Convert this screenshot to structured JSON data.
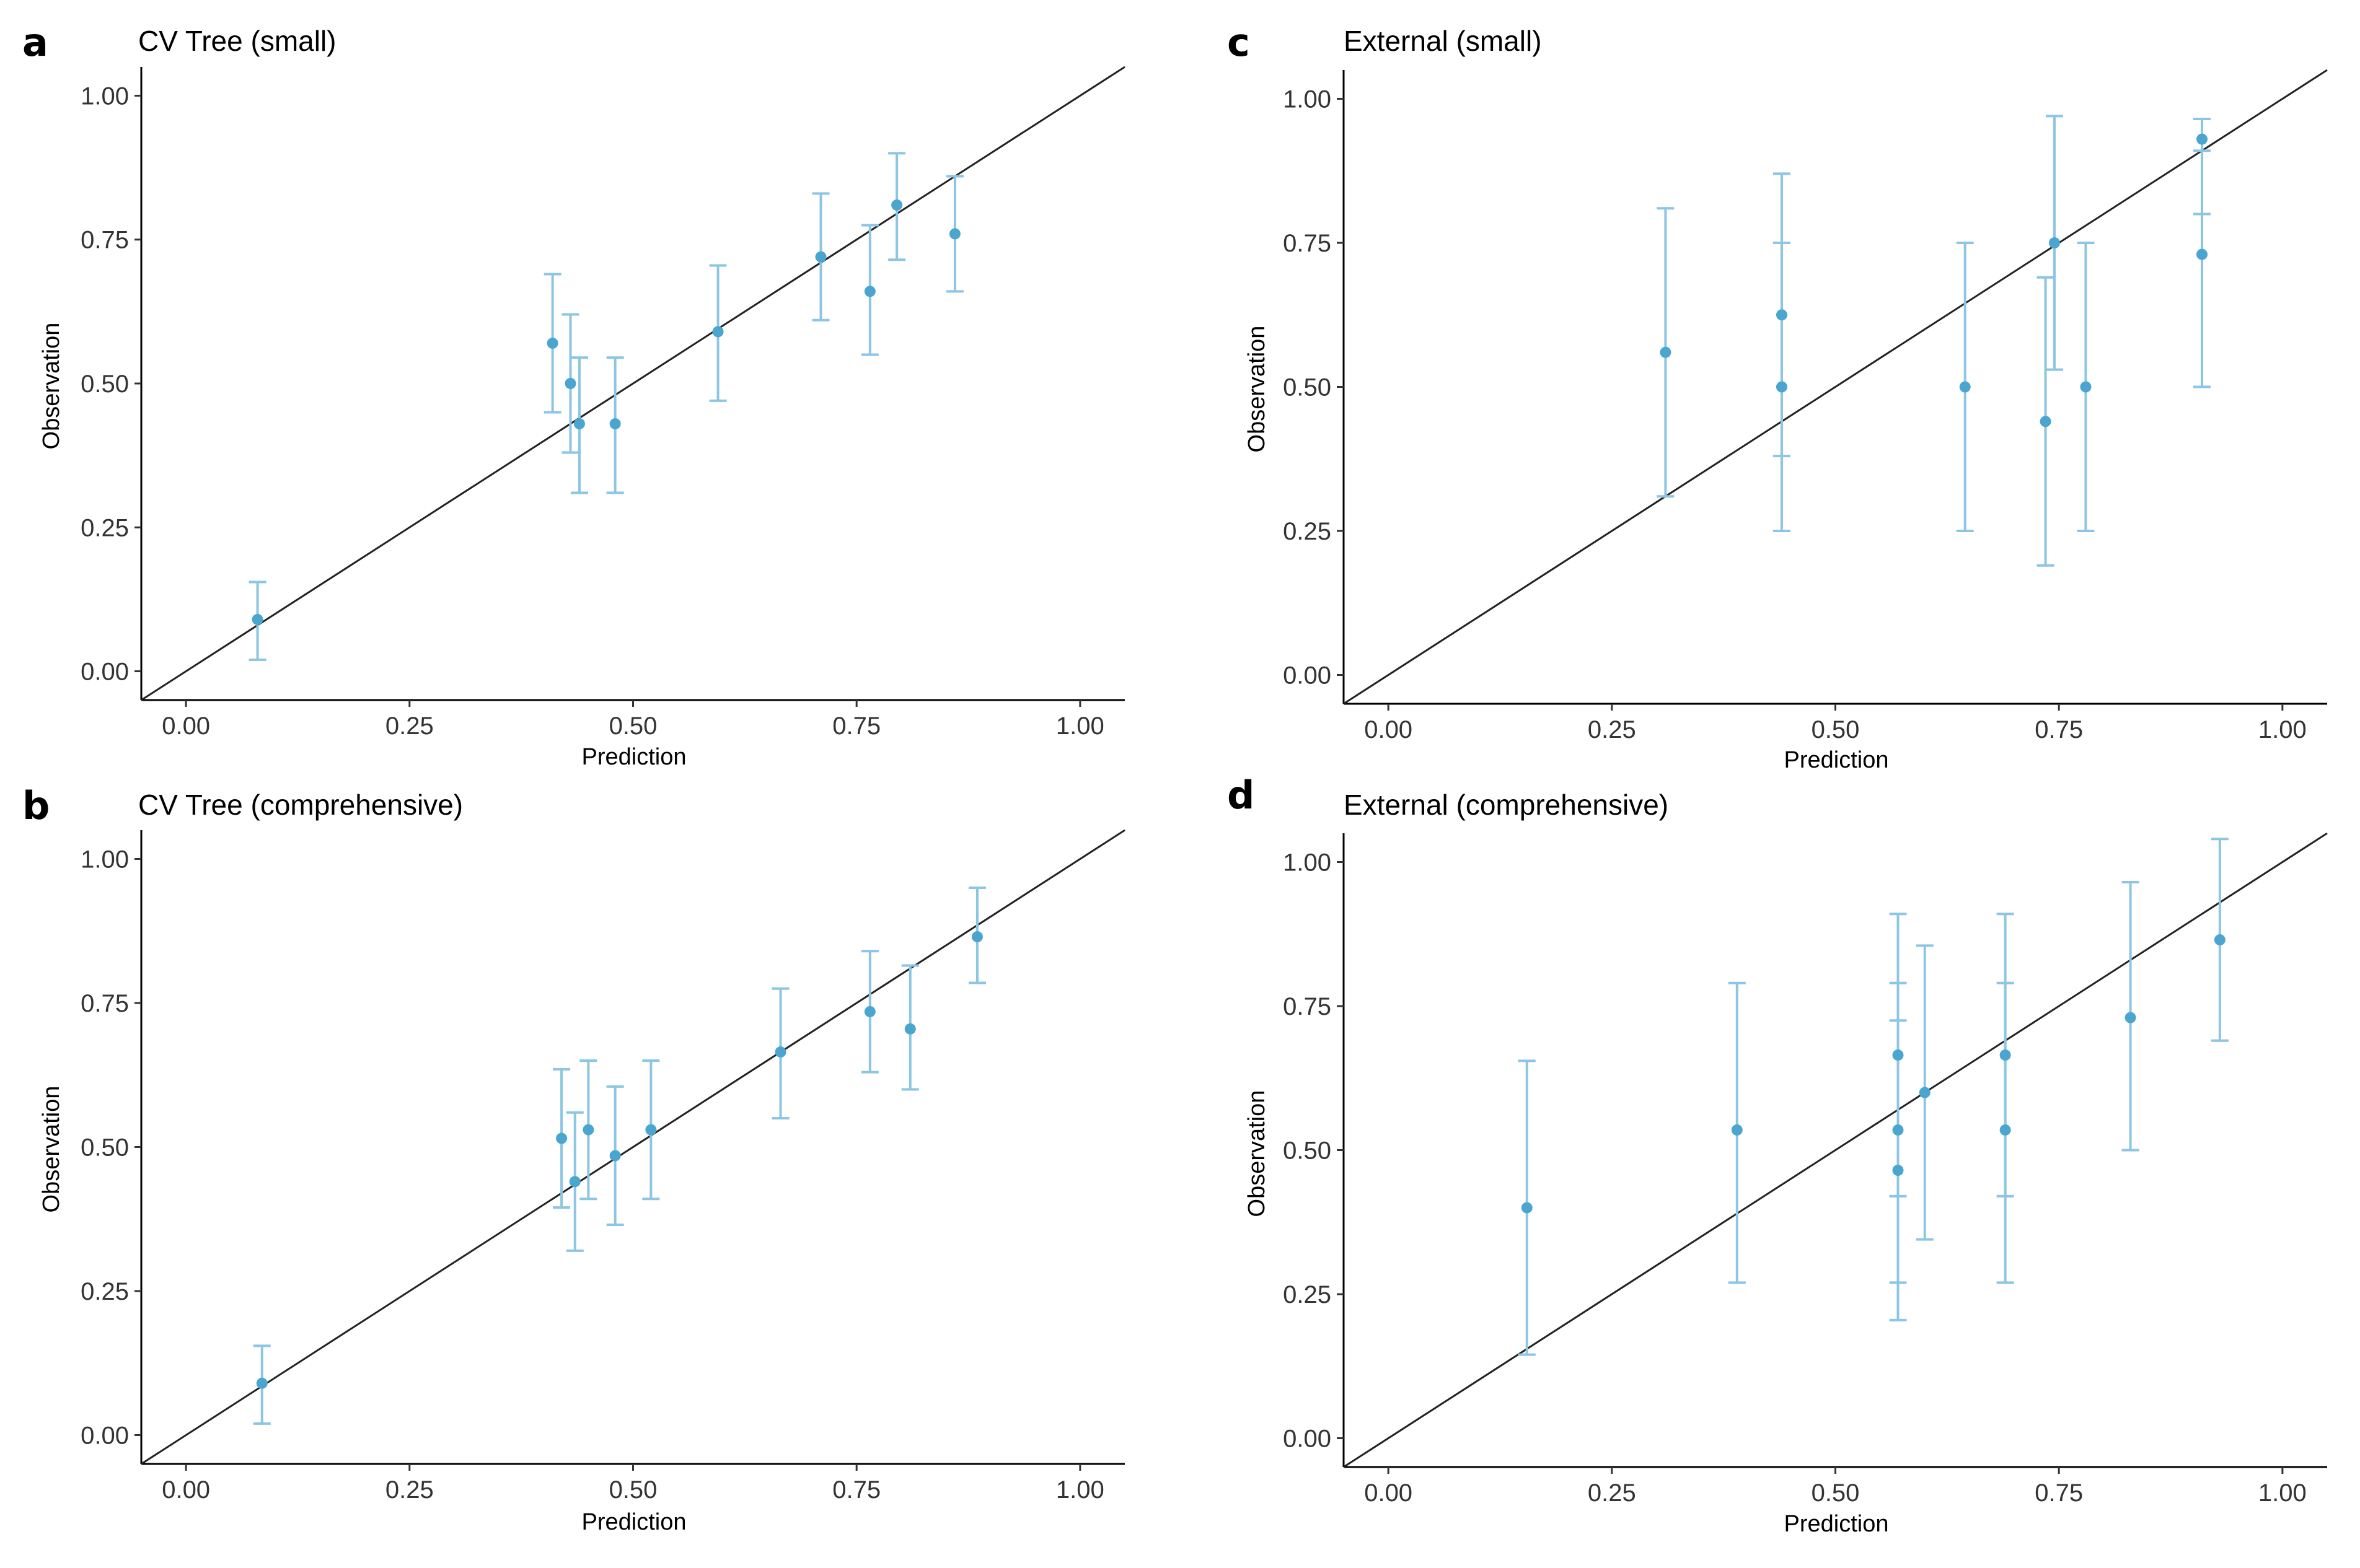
{
  "figure": {
    "marker_color": "#4aa6cf",
    "errorbar_color": "#8cc6e3",
    "line_color": "#222222"
  },
  "chart_data": [
    {
      "letter": "a",
      "type": "scatter",
      "title": "CV Tree (small)",
      "xlabel": "Prediction",
      "ylabel": "Observation",
      "xlim": [
        -0.05,
        1.05
      ],
      "ylim": [
        -0.05,
        1.05
      ],
      "xticks": [
        "0.00",
        "0.25",
        "0.50",
        "0.75",
        "1.00"
      ],
      "yticks": [
        "0.00",
        "0.25",
        "0.50",
        "0.75",
        "1.00"
      ],
      "reference_line": "y = x",
      "grid": false,
      "points": [
        {
          "x": 0.08,
          "y": 0.09,
          "lo": 0.02,
          "hi": 0.155
        },
        {
          "x": 0.41,
          "y": 0.57,
          "lo": 0.45,
          "hi": 0.69
        },
        {
          "x": 0.43,
          "y": 0.5,
          "lo": 0.38,
          "hi": 0.62
        },
        {
          "x": 0.44,
          "y": 0.43,
          "lo": 0.31,
          "hi": 0.545
        },
        {
          "x": 0.48,
          "y": 0.43,
          "lo": 0.31,
          "hi": 0.545
        },
        {
          "x": 0.595,
          "y": 0.59,
          "lo": 0.47,
          "hi": 0.705
        },
        {
          "x": 0.71,
          "y": 0.72,
          "lo": 0.61,
          "hi": 0.83
        },
        {
          "x": 0.765,
          "y": 0.66,
          "lo": 0.55,
          "hi": 0.775
        },
        {
          "x": 0.795,
          "y": 0.81,
          "lo": 0.715,
          "hi": 0.9
        },
        {
          "x": 0.86,
          "y": 0.76,
          "lo": 0.66,
          "hi": 0.86
        }
      ]
    },
    {
      "letter": "b",
      "type": "scatter",
      "title": "CV Tree (comprehensive)",
      "xlabel": "Prediction",
      "ylabel": "Observation",
      "xlim": [
        -0.05,
        1.05
      ],
      "ylim": [
        -0.05,
        1.05
      ],
      "xticks": [
        "0.00",
        "0.25",
        "0.50",
        "0.75",
        "1.00"
      ],
      "yticks": [
        "0.00",
        "0.25",
        "0.50",
        "0.75",
        "1.00"
      ],
      "reference_line": "y = x",
      "grid": false,
      "points": [
        {
          "x": 0.085,
          "y": 0.09,
          "lo": 0.02,
          "hi": 0.155
        },
        {
          "x": 0.42,
          "y": 0.515,
          "lo": 0.395,
          "hi": 0.635
        },
        {
          "x": 0.435,
          "y": 0.44,
          "lo": 0.32,
          "hi": 0.56
        },
        {
          "x": 0.45,
          "y": 0.53,
          "lo": 0.41,
          "hi": 0.65
        },
        {
          "x": 0.48,
          "y": 0.485,
          "lo": 0.365,
          "hi": 0.605
        },
        {
          "x": 0.52,
          "y": 0.53,
          "lo": 0.41,
          "hi": 0.65
        },
        {
          "x": 0.665,
          "y": 0.665,
          "lo": 0.55,
          "hi": 0.775
        },
        {
          "x": 0.765,
          "y": 0.735,
          "lo": 0.63,
          "hi": 0.84
        },
        {
          "x": 0.81,
          "y": 0.705,
          "lo": 0.6,
          "hi": 0.815
        },
        {
          "x": 0.885,
          "y": 0.865,
          "lo": 0.785,
          "hi": 0.95
        }
      ]
    },
    {
      "letter": "c",
      "type": "scatter",
      "title": "External (small)",
      "xlabel": "Prediction",
      "ylabel": "Observation",
      "xlim": [
        -0.05,
        1.05
      ],
      "ylim": [
        -0.05,
        1.05
      ],
      "xticks": [
        "0.00",
        "0.25",
        "0.50",
        "0.75",
        "1.00"
      ],
      "yticks": [
        "0.00",
        "0.25",
        "0.50",
        "0.75",
        "1.00"
      ],
      "reference_line": "y = x",
      "grid": false,
      "points": [
        {
          "x": 0.31,
          "y": 0.56,
          "lo": 0.31,
          "hi": 0.81
        },
        {
          "x": 0.44,
          "y": 0.625,
          "lo": 0.38,
          "hi": 0.87
        },
        {
          "x": 0.44,
          "y": 0.5,
          "lo": 0.25,
          "hi": 0.75
        },
        {
          "x": 0.645,
          "y": 0.5,
          "lo": 0.25,
          "hi": 0.75
        },
        {
          "x": 0.735,
          "y": 0.44,
          "lo": 0.19,
          "hi": 0.69
        },
        {
          "x": 0.745,
          "y": 0.75,
          "lo": 0.53,
          "hi": 0.97
        },
        {
          "x": 0.78,
          "y": 0.5,
          "lo": 0.25,
          "hi": 0.75
        },
        {
          "x": 0.91,
          "y": 0.93,
          "lo": 0.8,
          "hi": 0.965
        },
        {
          "x": 0.91,
          "y": 0.73,
          "lo": 0.5,
          "hi": 0.91
        }
      ]
    },
    {
      "letter": "d",
      "type": "scatter",
      "title": "External (comprehensive)",
      "xlabel": "Prediction",
      "ylabel": "Observation",
      "xlim": [
        -0.05,
        1.05
      ],
      "ylim": [
        -0.05,
        1.05
      ],
      "xticks": [
        "0.00",
        "0.25",
        "0.50",
        "0.75",
        "1.00"
      ],
      "yticks": [
        "0.00",
        "0.25",
        "0.50",
        "0.75",
        "1.00"
      ],
      "reference_line": "y = x",
      "grid": false,
      "points": [
        {
          "x": 0.155,
          "y": 0.4,
          "lo": 0.145,
          "hi": 0.655
        },
        {
          "x": 0.39,
          "y": 0.535,
          "lo": 0.27,
          "hi": 0.79
        },
        {
          "x": 0.57,
          "y": 0.665,
          "lo": 0.42,
          "hi": 0.91
        },
        {
          "x": 0.57,
          "y": 0.535,
          "lo": 0.27,
          "hi": 0.79
        },
        {
          "x": 0.57,
          "y": 0.465,
          "lo": 0.205,
          "hi": 0.725
        },
        {
          "x": 0.6,
          "y": 0.6,
          "lo": 0.345,
          "hi": 0.855
        },
        {
          "x": 0.69,
          "y": 0.665,
          "lo": 0.42,
          "hi": 0.91
        },
        {
          "x": 0.69,
          "y": 0.535,
          "lo": 0.27,
          "hi": 0.79
        },
        {
          "x": 0.83,
          "y": 0.73,
          "lo": 0.5,
          "hi": 0.965
        },
        {
          "x": 0.93,
          "y": 0.865,
          "lo": 0.69,
          "hi": 1.04
        }
      ]
    }
  ]
}
